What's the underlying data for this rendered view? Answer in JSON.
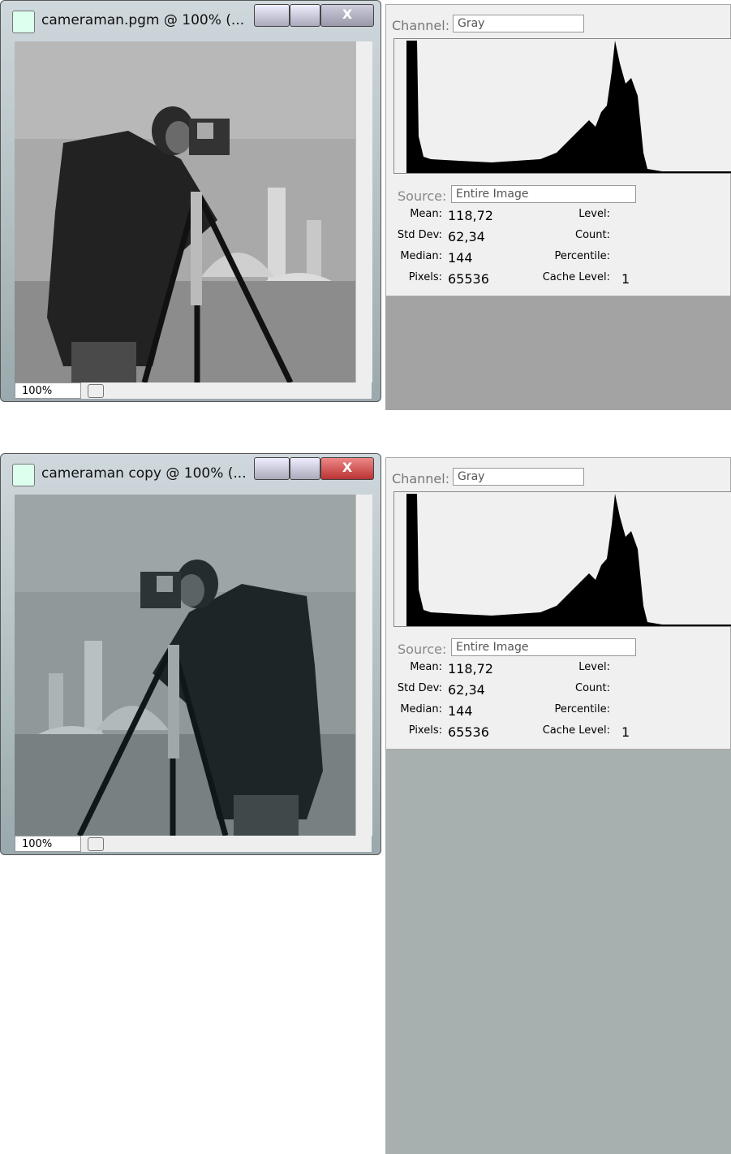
{
  "windows": [
    {
      "title": "cameraman.pgm @ 100% (...",
      "zoom": "100%",
      "histogram": {
        "channel_label": "Channel:",
        "channel": "Gray",
        "source_label": "Source:",
        "source": "Entire Image",
        "stats": [
          {
            "label": "Mean:",
            "value": "118,72"
          },
          {
            "label": "Std Dev:",
            "value": "62,34"
          },
          {
            "label": "Median:",
            "value": "144"
          },
          {
            "label": "Pixels:",
            "value": "65536"
          }
        ],
        "right": [
          {
            "label": "Level:"
          },
          {
            "label": "Count:"
          },
          {
            "label": "Percentile:"
          },
          {
            "label": "Cache Level:",
            "value": "1"
          }
        ]
      }
    },
    {
      "title": "cameraman copy @ 100% (...",
      "zoom": "100%",
      "histogram": {
        "channel_label": "Channel:",
        "channel": "Gray",
        "source_label": "Source:",
        "source": "Entire Image",
        "stats": [
          {
            "label": "Mean:",
            "value": "118,72"
          },
          {
            "label": "Std Dev:",
            "value": "62,34"
          },
          {
            "label": "Median:",
            "value": "144"
          },
          {
            "label": "Pixels:",
            "value": "65536"
          }
        ],
        "right": [
          {
            "label": "Level:"
          },
          {
            "label": "Count:"
          },
          {
            "label": "Percentile:"
          },
          {
            "label": "Cache Level:",
            "value": "1"
          }
        ]
      }
    }
  ]
}
